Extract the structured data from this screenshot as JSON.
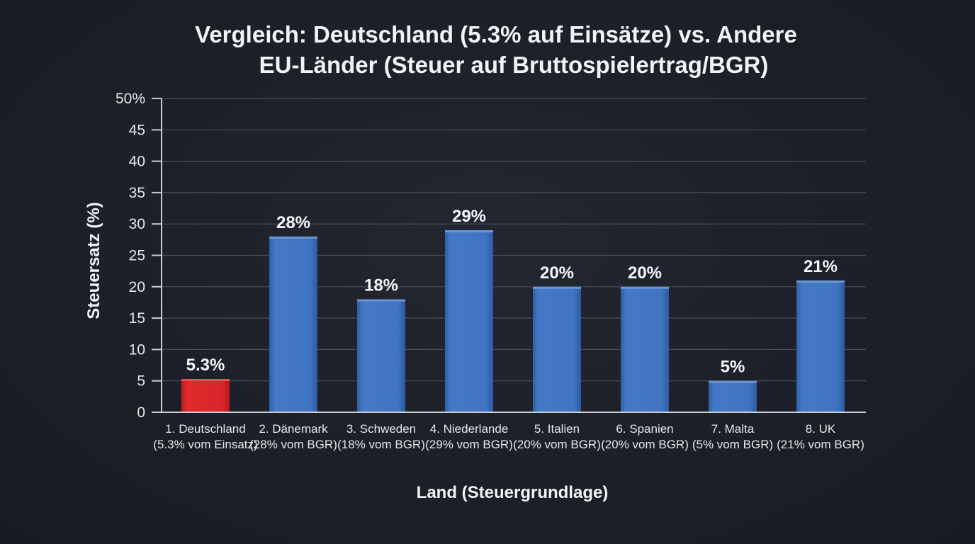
{
  "chart_data": {
    "type": "bar",
    "title_lines": [
      "Vergleich: Deutschland (5.3% auf Einsätze) vs. Andere",
      "EU-Länder (Steuer auf Bruttospielertrag/BGR)"
    ],
    "xlabel": "Land (Steuergrundlage)",
    "ylabel": "Steuersatz (%)",
    "ylim": [
      0,
      50
    ],
    "yticks": [
      "0",
      "5",
      "10",
      "15",
      "20",
      "25",
      "30",
      "35",
      "40",
      "45",
      "50%"
    ],
    "grid": true,
    "categories": [
      [
        "1. Deutschland",
        "(5.3% vom Einsatz)"
      ],
      [
        "2. Dänemark",
        "(28% vom BGR)"
      ],
      [
        "3. Schweden",
        "(18% vom BGR)"
      ],
      [
        "4. Niederlande",
        "(29% vom BGR)"
      ],
      [
        "5. Italien",
        "(20% vom BGR)"
      ],
      [
        "6. Spanien",
        "(20% vom BGR)"
      ],
      [
        "7. Malta",
        "(5% vom BGR)"
      ],
      [
        "8. UK",
        "(21% vom BGR)"
      ]
    ],
    "values": [
      5.3,
      28,
      18,
      29,
      20,
      20,
      5,
      21
    ],
    "data_labels": [
      "5.3%",
      "28%",
      "18%",
      "29%",
      "20%",
      "20%",
      "5%",
      "21%"
    ],
    "colors": [
      "#d9262a",
      "#3f74c2",
      "#3f74c2",
      "#3f74c2",
      "#3f74c2",
      "#3f74c2",
      "#3f74c2",
      "#3f74c2"
    ]
  }
}
